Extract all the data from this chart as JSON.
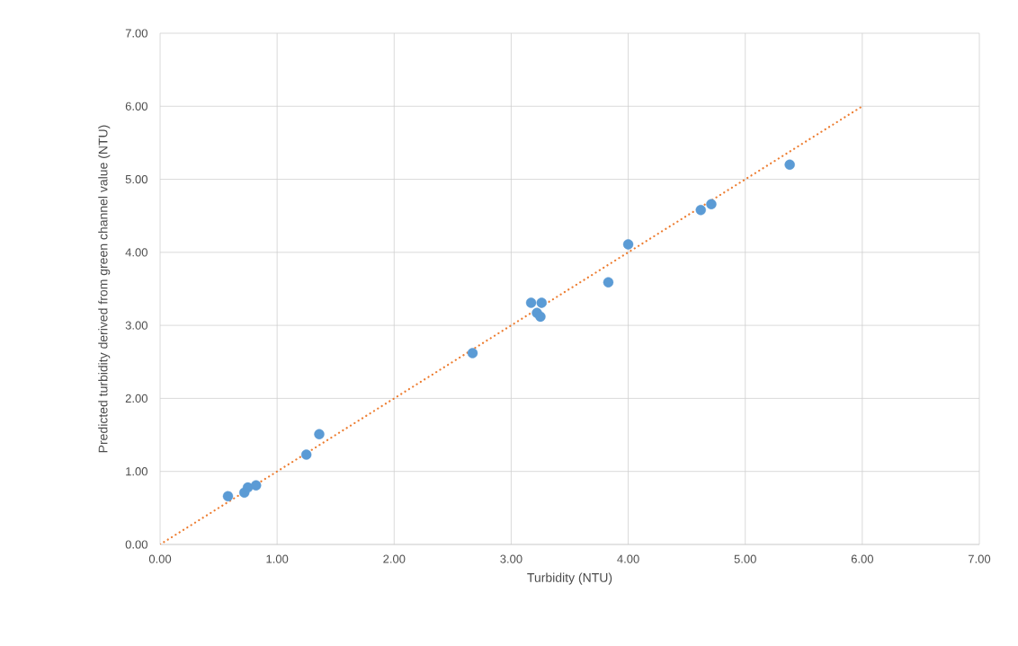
{
  "chart_data": {
    "type": "scatter",
    "xlabel": "Turbidity (NTU)",
    "ylabel": "Predicted turbidity derived from green channel value (NTU)",
    "xlim": [
      0,
      7
    ],
    "ylim": [
      0,
      7
    ],
    "xticks": [
      {
        "value": 0,
        "label": "0.00"
      },
      {
        "value": 1,
        "label": "1.00"
      },
      {
        "value": 2,
        "label": "2.00"
      },
      {
        "value": 3,
        "label": "3.00"
      },
      {
        "value": 4,
        "label": "4.00"
      },
      {
        "value": 5,
        "label": "5.00"
      },
      {
        "value": 6,
        "label": "6.00"
      },
      {
        "value": 7,
        "label": "7.00"
      }
    ],
    "yticks": [
      {
        "value": 0,
        "label": "0.00"
      },
      {
        "value": 1,
        "label": "1.00"
      },
      {
        "value": 2,
        "label": "2.00"
      },
      {
        "value": 3,
        "label": "3.00"
      },
      {
        "value": 4,
        "label": "4.00"
      },
      {
        "value": 5,
        "label": "5.00"
      },
      {
        "value": 6,
        "label": "6.00"
      },
      {
        "value": 7,
        "label": "7.00"
      }
    ],
    "grid": true,
    "x": [
      0.58,
      0.72,
      0.75,
      0.82,
      1.25,
      1.36,
      2.67,
      3.17,
      3.26,
      3.22,
      3.25,
      3.83,
      4.0,
      4.62,
      4.71,
      5.38
    ],
    "series": [
      {
        "color": "#5b9bd5",
        "marker": "circle",
        "values": [
          0.66,
          0.71,
          0.78,
          0.81,
          1.23,
          1.51,
          2.62,
          3.31,
          3.31,
          3.17,
          3.12,
          3.59,
          4.11,
          4.58,
          4.66,
          5.2
        ]
      },
      {
        "type": "line",
        "color": "#ed7d31",
        "line_style": "dotted",
        "x": [
          0,
          6
        ],
        "values": [
          0,
          6
        ]
      }
    ]
  }
}
